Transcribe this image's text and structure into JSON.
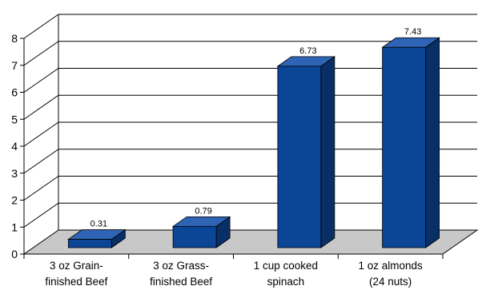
{
  "chart_data": {
    "type": "bar",
    "title": "",
    "xlabel": "",
    "ylabel": "",
    "ylim": [
      0,
      8
    ],
    "yticks": [
      "0",
      "1",
      "2",
      "3",
      "4",
      "5",
      "6",
      "7",
      "8"
    ],
    "categories": [
      [
        "3 oz Grain-",
        "finished Beef"
      ],
      [
        "3 oz Grass-",
        "finished Beef"
      ],
      [
        "1 cup cooked",
        "spinach"
      ],
      [
        "1 oz almonds",
        "(24 nuts)"
      ]
    ],
    "values": [
      0.31,
      0.79,
      6.73,
      7.43
    ],
    "data_labels": [
      "0.31",
      "0.79",
      "6.73",
      "7.43"
    ],
    "grid": true,
    "style": "3d",
    "colors": {
      "bar_front": "#0b4596",
      "bar_top": "#2f63b5",
      "bar_side": "#082f66",
      "floor": "#c8c8c8",
      "gridline": "#000000"
    }
  }
}
